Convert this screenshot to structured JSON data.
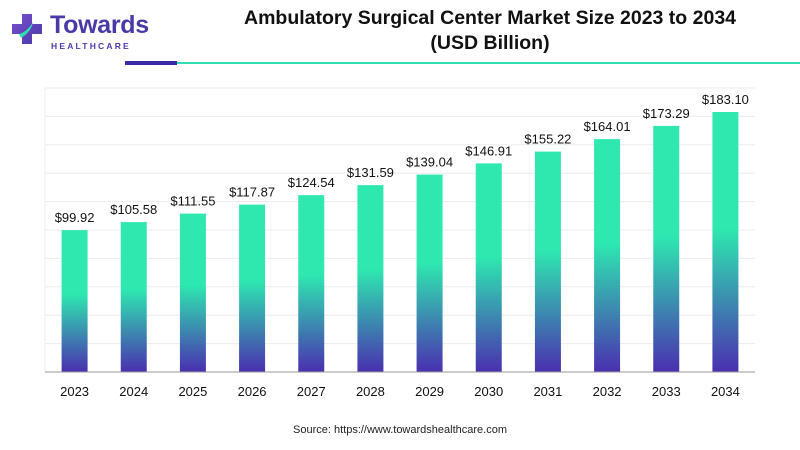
{
  "brand": {
    "name": "Towards",
    "sub": "HEALTHCARE"
  },
  "header": {
    "title_line1": "Ambulatory Surgical Center Market Size 2023 to 2034",
    "title_line2": "(USD Billion)"
  },
  "source": "Source: https://www.towardshealthcare.com",
  "colors": {
    "bar_top": "#2ee8b0",
    "bar_bottom": "#4a2fb0",
    "brand_purple": "#4a3aa8",
    "accent_teal": "#2ee0b0"
  },
  "chart_data": {
    "type": "bar",
    "title": "Ambulatory Surgical Center Market Size 2023 to 2034 (USD Billion)",
    "categories": [
      "2023",
      "2024",
      "2025",
      "2026",
      "2027",
      "2028",
      "2029",
      "2030",
      "2031",
      "2032",
      "2033",
      "2034"
    ],
    "values": [
      99.92,
      105.58,
      111.55,
      117.87,
      124.54,
      131.59,
      139.04,
      146.91,
      155.22,
      164.01,
      173.29,
      183.1
    ],
    "data_labels": [
      "$99.92",
      "$105.58",
      "$111.55",
      "$117.87",
      "$124.54",
      "$131.59",
      "$139.04",
      "$146.91",
      "$155.22",
      "$164.01",
      "$173.29",
      "$183.10"
    ],
    "xlabel": "",
    "ylabel": "",
    "ylim": [
      0,
      200
    ],
    "grid": true,
    "legend": "none"
  }
}
